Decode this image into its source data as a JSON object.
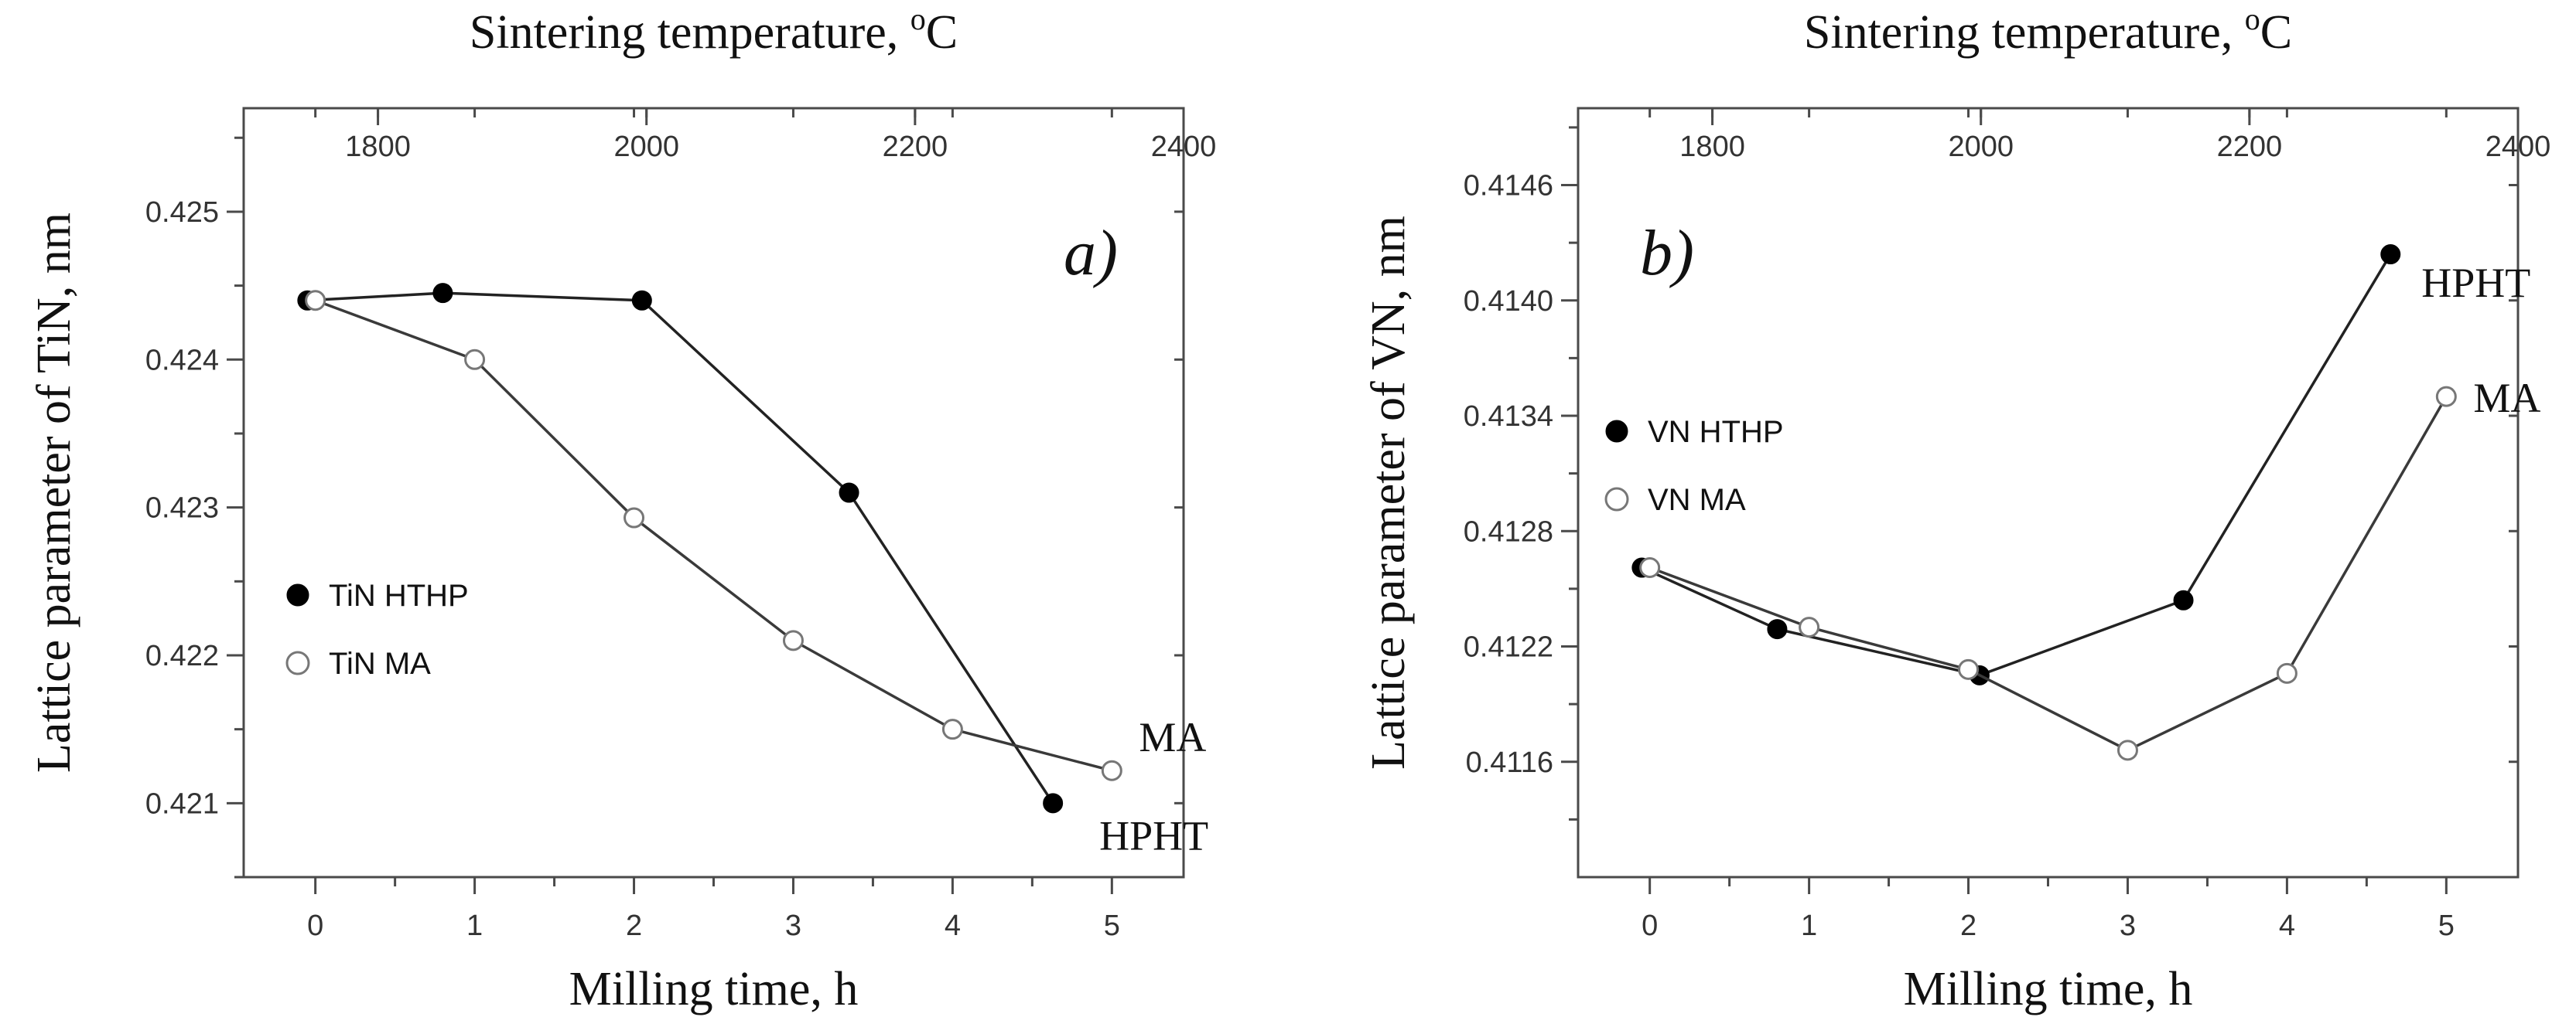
{
  "chart_data": [
    {
      "panel_label": "a)",
      "type": "line",
      "top_axis": {
        "title": "Sintering temperature, °C",
        "title_main": "Sintering temperature, ",
        "title_sup": "o",
        "title_unit": "C",
        "range": [
          1700,
          2400
        ],
        "ticks": [
          "1800",
          "2000",
          "2200",
          "2400"
        ]
      },
      "x_axis": {
        "title": "Milling time, h",
        "range": [
          -0.45,
          5.45
        ],
        "ticks": [
          "0",
          "1",
          "2",
          "3",
          "4",
          "5"
        ]
      },
      "y_axis": {
        "title": "Lattice parameter of TiN, nm",
        "range": [
          0.4205,
          0.4257
        ],
        "ticks": [
          "0.421",
          "0.422",
          "0.423",
          "0.424",
          "0.425"
        ]
      },
      "legend": {
        "position": "middle-left",
        "items": [
          {
            "name": "TiN HTHP",
            "marker": "filled"
          },
          {
            "name": "TiN MA",
            "marker": "open"
          }
        ]
      },
      "series": [
        {
          "name": "TiN HTHP",
          "marker": "filled",
          "end_label": "HPHT",
          "x": [
            -0.05,
            0.8,
            2.05,
            3.35,
            4.63
          ],
          "y": [
            0.4244,
            0.42445,
            0.4244,
            0.4231,
            0.421
          ]
        },
        {
          "name": "TiN MA",
          "marker": "open",
          "end_label": "MA",
          "x": [
            0,
            1,
            2,
            3,
            4,
            5
          ],
          "y": [
            0.4244,
            0.424,
            0.42293,
            0.4221,
            0.4215,
            0.42122
          ]
        }
      ]
    },
    {
      "panel_label": "b)",
      "type": "line",
      "top_axis": {
        "title": "Sintering temperature, °C",
        "title_main": "Sintering temperature, ",
        "title_sup": "o",
        "title_unit": "C",
        "range": [
          1700,
          2400
        ],
        "ticks": [
          "1800",
          "2000",
          "2200",
          "2400"
        ]
      },
      "x_axis": {
        "title": "Milling time, h",
        "range": [
          -0.45,
          5.45
        ],
        "ticks": [
          "0",
          "1",
          "2",
          "3",
          "4",
          "5"
        ]
      },
      "y_axis": {
        "title": "Lattice parameter of VN, nm",
        "range": [
          0.411,
          0.415
        ],
        "ticks": [
          "0.4116",
          "0.4122",
          "0.4128",
          "0.4134",
          "0.4140",
          "0.4146"
        ]
      },
      "legend": {
        "position": "middle-left",
        "items": [
          {
            "name": "VN HTHP",
            "marker": "filled"
          },
          {
            "name": "VN MA",
            "marker": "open"
          }
        ]
      },
      "series": [
        {
          "name": "VN HTHP",
          "marker": "filled",
          "end_label": "HPHT",
          "x": [
            -0.05,
            0.8,
            2.07,
            3.35,
            4.65
          ],
          "y": [
            0.41261,
            0.41229,
            0.41205,
            0.41244,
            0.41424
          ]
        },
        {
          "name": "VN MA",
          "marker": "open",
          "end_label": "MA",
          "x": [
            0,
            1,
            2,
            3,
            4,
            5
          ],
          "y": [
            0.41261,
            0.4123,
            0.41208,
            0.41166,
            0.41206,
            0.4135
          ]
        }
      ]
    }
  ]
}
